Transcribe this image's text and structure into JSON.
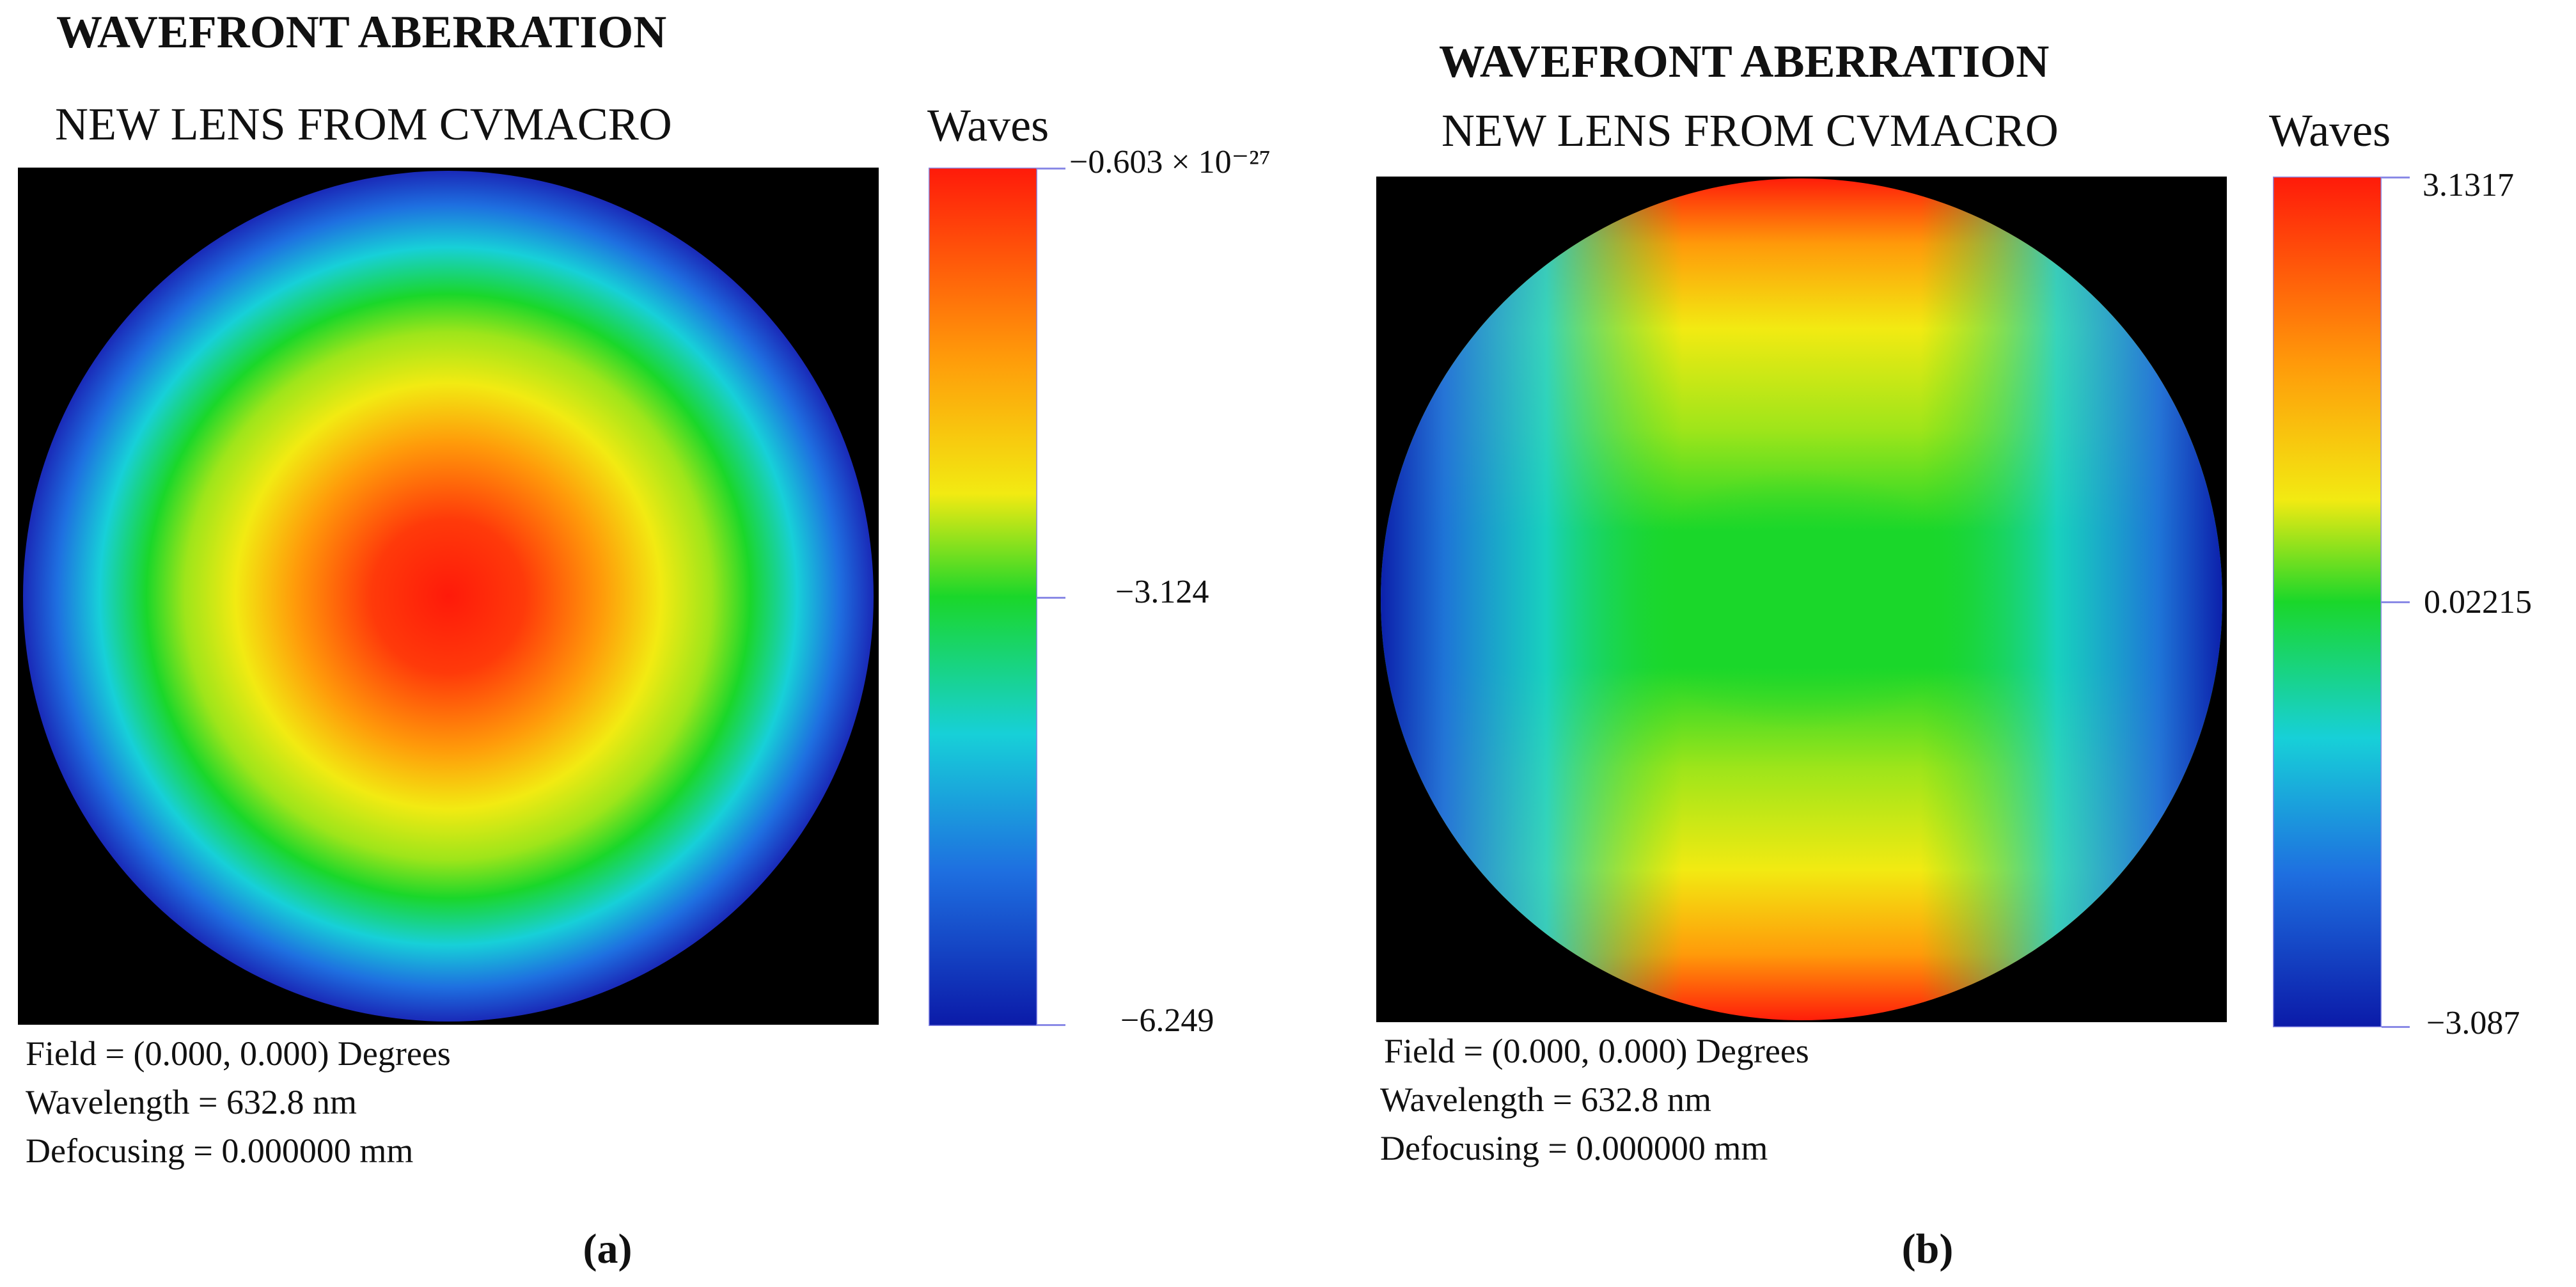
{
  "figure": {
    "captions": [
      "(a)",
      "(b)"
    ]
  },
  "chart_data": [
    {
      "type": "heatmap",
      "panel_label": "a",
      "title": "WAVEFRONT ABERRATION",
      "subtitle": "NEW LENS FROM CVMACRO",
      "colorbar_label": "Waves",
      "colorbar_ticks": [
        "−0.603 × 10⁻²⁷",
        "−3.124",
        "−6.249"
      ],
      "value_range": [
        -6.249,
        -6.03e-28
      ],
      "pattern": "defocus (radially symmetric, maximum at pupil center)",
      "colormap": [
        "#0b1aa8",
        "#1e6fe0",
        "#17d0d8",
        "#1ad72a",
        "#9ee51a",
        "#f2ea12",
        "#ff9a0a",
        "#ff1a0a"
      ],
      "field_text": "Field = (0.000,  0.000)  Degrees",
      "wavelength_text": "Wavelength =  632.8 nm",
      "defocusing_text": "Defocusing =  0.000000  mm"
    },
    {
      "type": "heatmap",
      "panel_label": "b",
      "title": "WAVEFRONT ABERRATION",
      "subtitle": "NEW LENS FROM CVMACRO",
      "colorbar_label": "Waves",
      "colorbar_ticks": [
        "3.1317",
        "0.02215",
        "−3.087"
      ],
      "value_range": [
        -3.087,
        3.1317
      ],
      "pattern": "astigmatism (saddle: maxima at top and bottom, minima at left and right)",
      "colormap": [
        "#0b1aa8",
        "#1e6fe0",
        "#17d0d8",
        "#1ad72a",
        "#9ee51a",
        "#f2ea12",
        "#ff9a0a",
        "#ff1a0a"
      ],
      "field_text": "Field = (0.000,  0.000)  Degrees",
      "wavelength_text": "Wavelength =  632.8 nm",
      "defocusing_text": "Defocusing =  0.000000  mm"
    }
  ]
}
